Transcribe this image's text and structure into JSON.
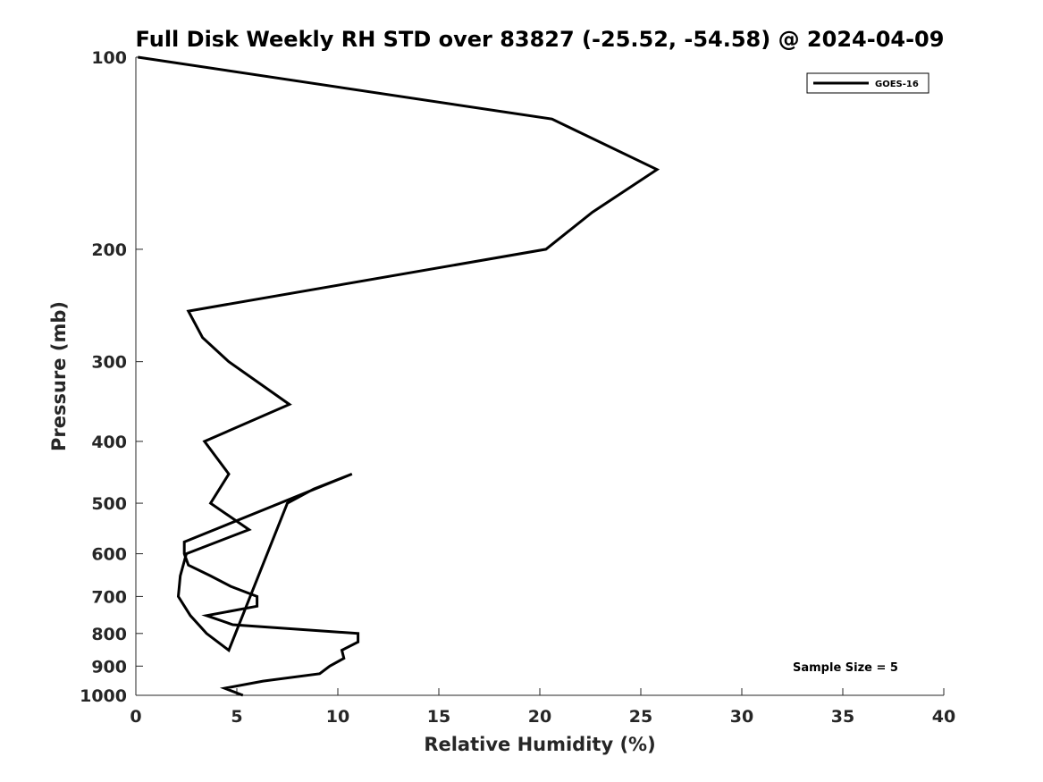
{
  "chart_data": {
    "type": "line",
    "title": "Full Disk Weekly RH STD over 83827 (-25.52, -54.58) @ 2024-04-09",
    "xlabel": "Relative Humidity (%)",
    "ylabel": "Pressure (mb)",
    "xlim": [
      0,
      40
    ],
    "ylim": [
      100,
      1000
    ],
    "y_scale": "log",
    "y_reversed": true,
    "xticks": [
      0,
      5,
      10,
      15,
      20,
      25,
      30,
      35,
      40
    ],
    "yticks": [
      100,
      200,
      300,
      400,
      500,
      600,
      700,
      800,
      900,
      1000
    ],
    "grid": false,
    "legend_position": "top-right",
    "annotation": "Sample Size = 5",
    "series": [
      {
        "name": "GOES-16",
        "color": "#000000",
        "points": [
          {
            "x": 0.1,
            "y": 100
          },
          {
            "x": 20.6,
            "y": 125
          },
          {
            "x": 25.8,
            "y": 150
          },
          {
            "x": 22.6,
            "y": 175
          },
          {
            "x": 20.3,
            "y": 200
          },
          {
            "x": 2.6,
            "y": 250
          },
          {
            "x": 3.3,
            "y": 275
          },
          {
            "x": 4.6,
            "y": 300
          },
          {
            "x": 7.6,
            "y": 350
          },
          {
            "x": 3.4,
            "y": 400
          },
          {
            "x": 4.6,
            "y": 450
          },
          {
            "x": 3.7,
            "y": 500
          },
          {
            "x": 5.6,
            "y": 550
          },
          {
            "x": 2.5,
            "y": 600
          },
          {
            "x": 2.2,
            "y": 650
          },
          {
            "x": 2.1,
            "y": 700
          },
          {
            "x": 2.7,
            "y": 750
          },
          {
            "x": 3.5,
            "y": 800
          },
          {
            "x": 4.6,
            "y": 850
          },
          {
            "x": 7.5,
            "y": 500
          },
          {
            "x": 8.8,
            "y": 475
          },
          {
            "x": 10.7,
            "y": 450
          },
          {
            "x": 2.4,
            "y": 575
          },
          {
            "x": 2.4,
            "y": 600
          },
          {
            "x": 2.6,
            "y": 625
          },
          {
            "x": 3.7,
            "y": 650
          },
          {
            "x": 4.7,
            "y": 675
          },
          {
            "x": 6.0,
            "y": 700
          },
          {
            "x": 6.0,
            "y": 725
          },
          {
            "x": 3.5,
            "y": 750
          },
          {
            "x": 4.8,
            "y": 775
          },
          {
            "x": 11.0,
            "y": 800
          },
          {
            "x": 11.0,
            "y": 825
          },
          {
            "x": 10.2,
            "y": 850
          },
          {
            "x": 10.3,
            "y": 875
          },
          {
            "x": 9.6,
            "y": 900
          },
          {
            "x": 9.1,
            "y": 925
          },
          {
            "x": 6.3,
            "y": 950
          },
          {
            "x": 4.4,
            "y": 975
          },
          {
            "x": 5.3,
            "y": 1000
          }
        ]
      }
    ]
  }
}
